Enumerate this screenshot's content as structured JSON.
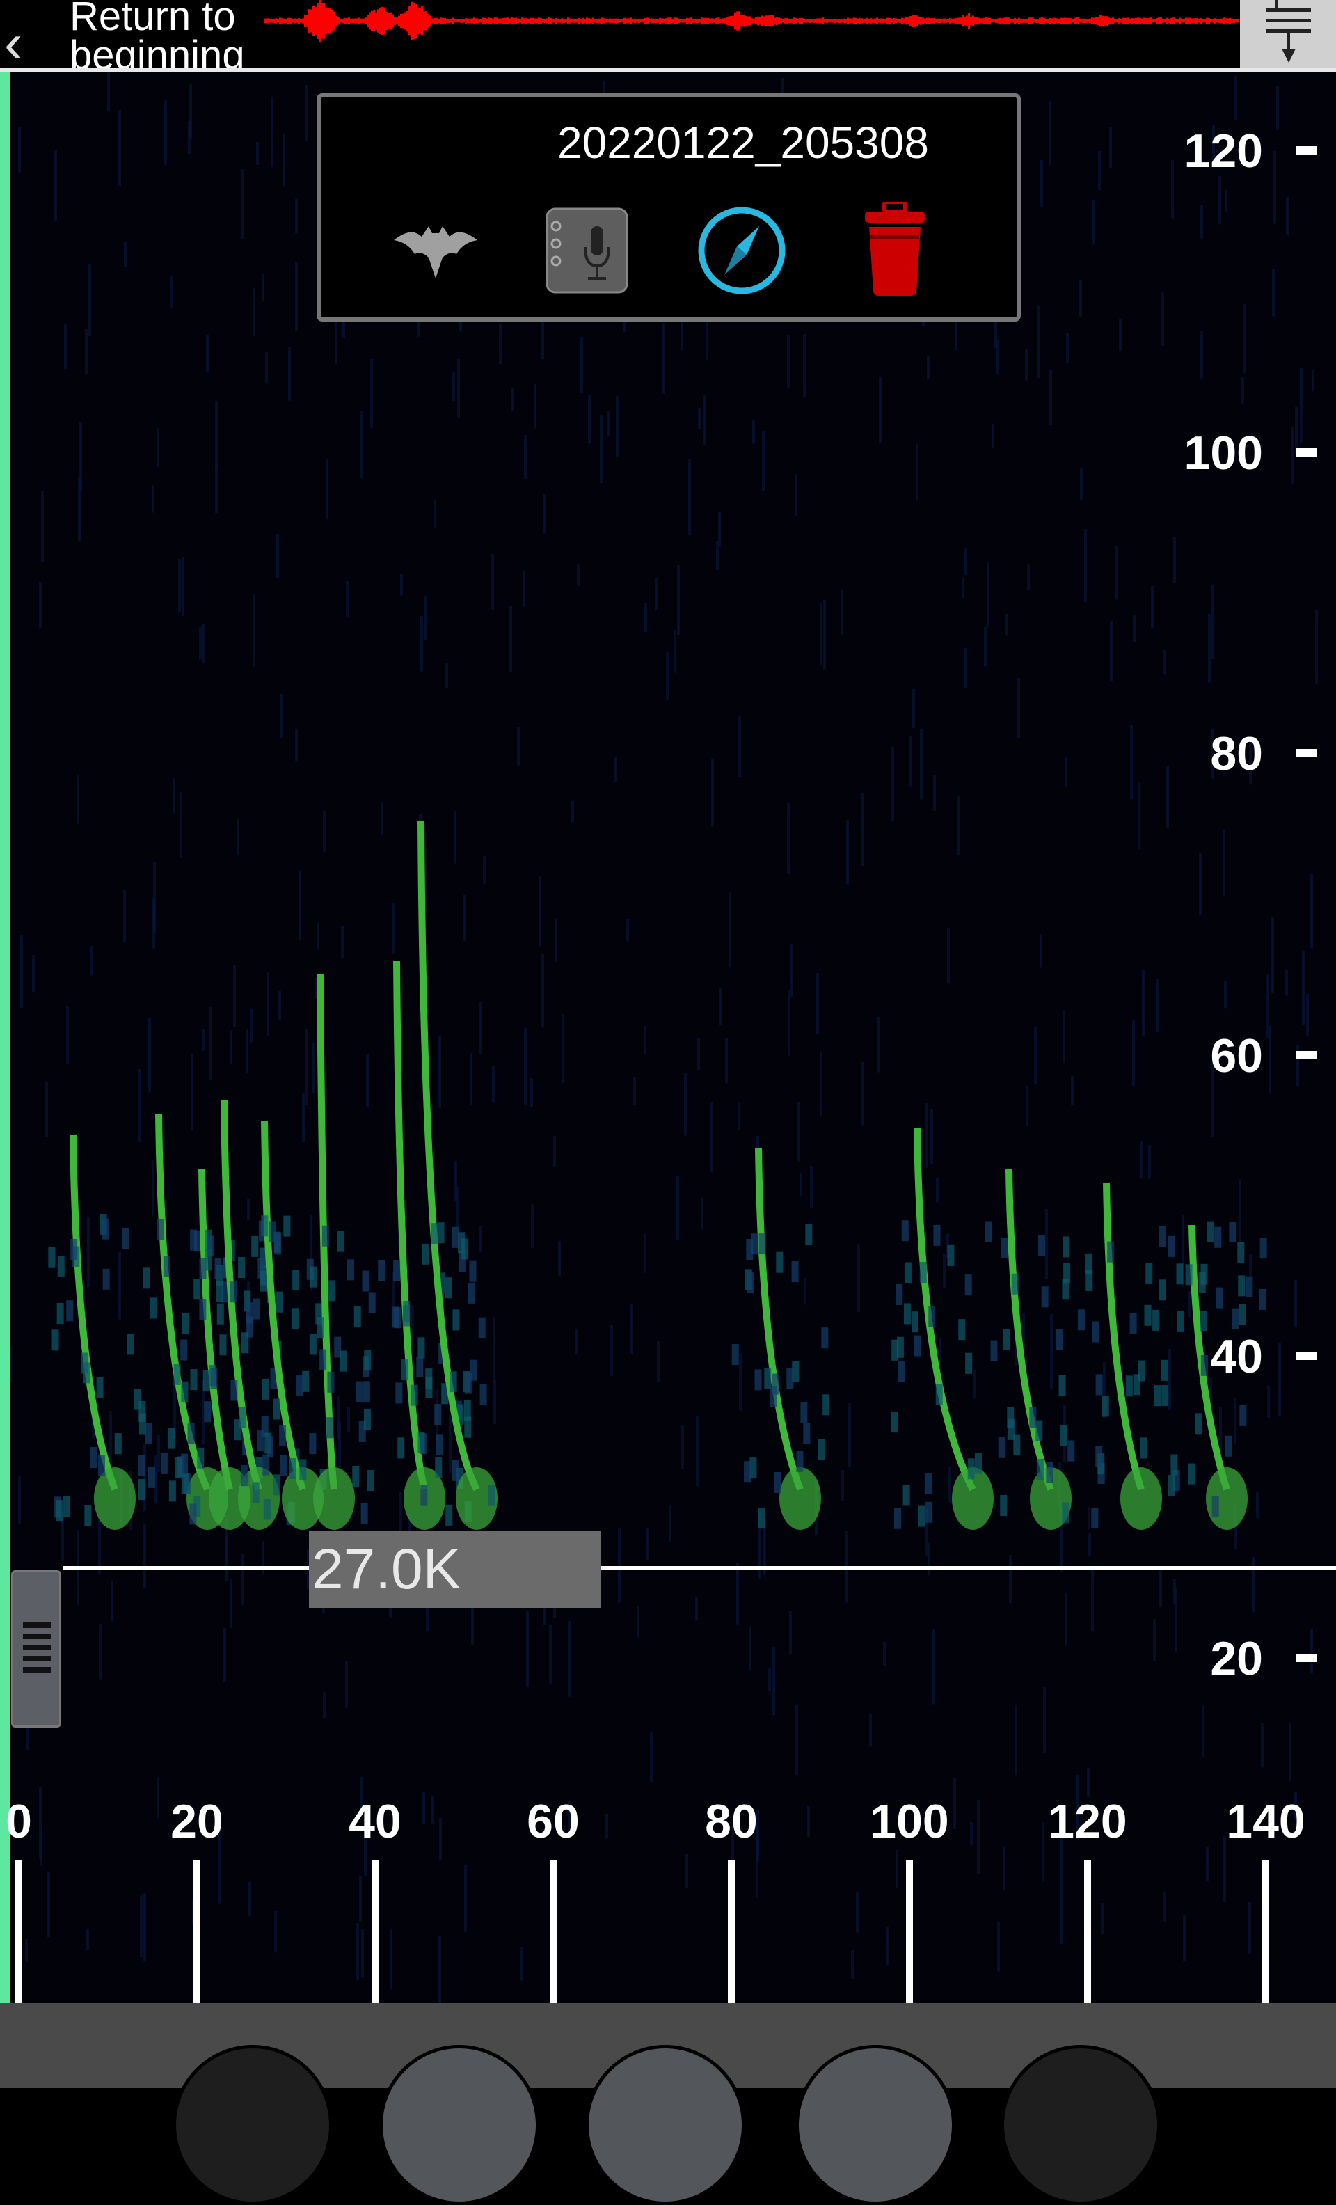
{
  "topbar": {
    "back_label": "Return to beginning",
    "back_icon": "chevron-left-icon",
    "waveform_color": "#ff0000",
    "menu_icon": "filter-down-icon"
  },
  "popup": {
    "filename": "20220122_205308",
    "icons": [
      "bat-icon",
      "notebook-microphone-icon",
      "compass-icon",
      "trash-icon"
    ],
    "icon_colors": {
      "bat": "#a0a0a0",
      "notebook": "#6a6a6a",
      "compass": "#28b8e0",
      "trash": "#cc0000"
    }
  },
  "spectrogram": {
    "playhead_color": "#5de8a0",
    "y_axis_ticks": [
      "120",
      "100",
      "80",
      "60",
      "40",
      "20"
    ],
    "x_axis_ticks": [
      "0",
      "20",
      "40",
      "60",
      "80",
      "100",
      "120",
      "140"
    ],
    "threshold_label": "27.0K",
    "threshold_khz": 27.0
  },
  "bottombar": {
    "buttons": [
      "control-button-1",
      "control-button-2",
      "control-button-3",
      "control-button-4",
      "control-button-5"
    ]
  }
}
